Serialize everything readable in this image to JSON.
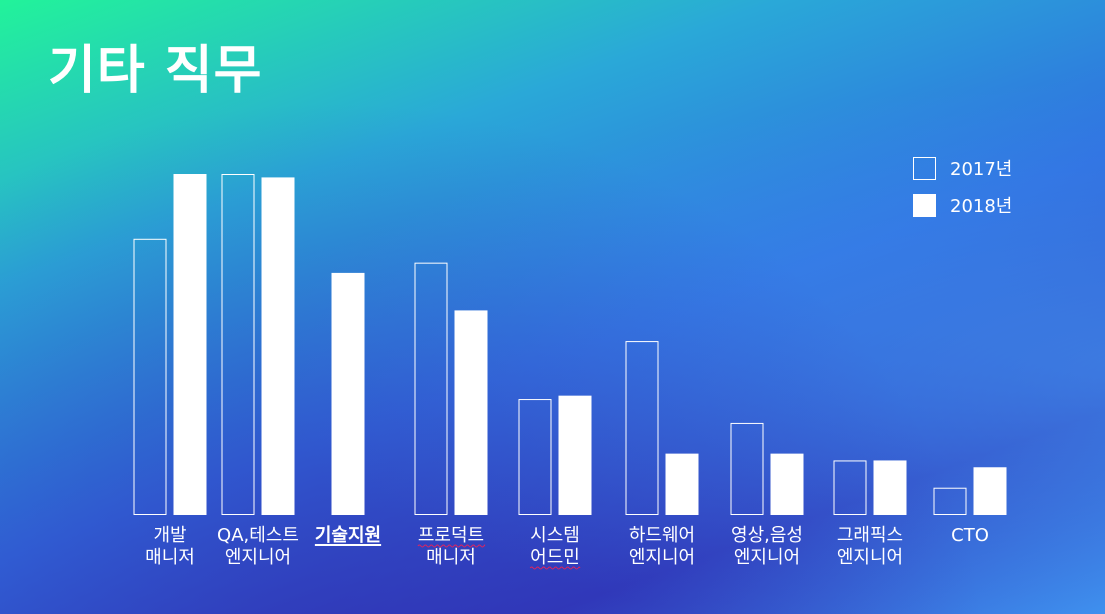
{
  "page": {
    "title": "기타 직무"
  },
  "legend": [
    {
      "label": "2017년",
      "style": "outline"
    },
    {
      "label": "2018년",
      "style": "filled"
    }
  ],
  "chart_data": {
    "type": "bar",
    "title": "기타 직무",
    "xlabel": "",
    "ylabel": "",
    "grid": false,
    "legend_position": "top-right",
    "categories": [
      {
        "lines": [
          "개발",
          "매니저"
        ]
      },
      {
        "lines": [
          "QA,테스트",
          "엔지니어"
        ]
      },
      {
        "lines": [
          "기술지원"
        ],
        "bold": true,
        "underline": "solid"
      },
      {
        "lines": [
          "프로덕트",
          "매니저"
        ],
        "underline": "wavy-first"
      },
      {
        "lines": [
          "시스템",
          "어드민"
        ],
        "underline": "wavy-second"
      },
      {
        "lines": [
          "하드웨어",
          "엔지니어"
        ]
      },
      {
        "lines": [
          "영상,음성",
          "엔지니어"
        ]
      },
      {
        "lines": [
          "그래픽스",
          "엔지니어"
        ]
      },
      {
        "lines": [
          "CTO"
        ]
      }
    ],
    "series": [
      {
        "name": "2017년",
        "style": "outline",
        "values": [
          81,
          100,
          null,
          74,
          34,
          51,
          27,
          16,
          8
        ]
      },
      {
        "name": "2018년",
        "style": "filled",
        "values": [
          100,
          99,
          71,
          60,
          35,
          18,
          18,
          16,
          14
        ]
      }
    ],
    "ylim": [
      0,
      100
    ],
    "colors": {
      "bar": "#ffffff",
      "text": "#ffffff",
      "wavy_underline": "#e0245e"
    }
  }
}
